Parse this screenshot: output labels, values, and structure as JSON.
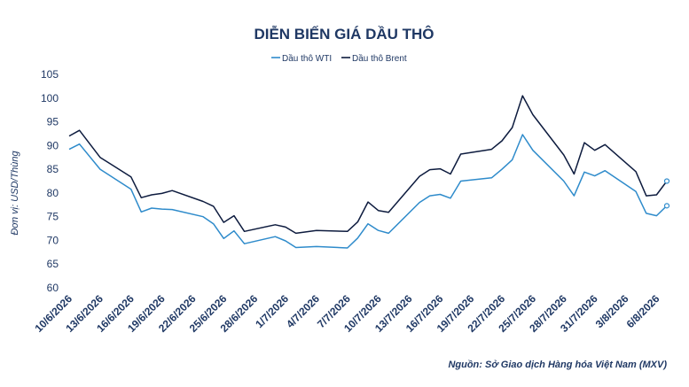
{
  "chart_data": {
    "type": "line",
    "title": "DIỄN BIẾN GIÁ DẦU THÔ",
    "ylabel": "Đơn vị: USD/Thùng",
    "xlabel": "",
    "ylim": [
      60,
      105
    ],
    "yticks": [
      "60",
      "65",
      "70",
      "75",
      "80",
      "85",
      "90",
      "95",
      "100",
      "105"
    ],
    "legend_position": "top-center",
    "grid": false,
    "x_tick_labels": [
      "10/6/2026",
      "13/6/2026",
      "16/6/2026",
      "19/6/2026",
      "22/6/2026",
      "25/6/2026",
      "28/6/2026",
      "1/7/2026",
      "4/7/2026",
      "7/7/2026",
      "10/7/2026",
      "13/7/2026",
      "16/7/2026",
      "19/7/2026",
      "22/7/2026",
      "25/7/2026",
      "28/7/2026",
      "31/7/2026",
      "3/8/2026",
      "6/8/2026"
    ],
    "series": [
      {
        "name": "Dầu thô WTI",
        "color": "#2e8bcb",
        "points": [
          [
            "10/6/2026",
            89.2
          ],
          [
            "11/6/2026",
            90.3
          ],
          [
            "13/6/2026",
            85.0
          ],
          [
            "16/6/2026",
            80.8
          ],
          [
            "17/6/2026",
            76.0
          ],
          [
            "18/6/2026",
            76.8
          ],
          [
            "19/6/2026",
            76.6
          ],
          [
            "20/6/2026",
            76.5
          ],
          [
            "23/6/2026",
            75.0
          ],
          [
            "24/6/2026",
            73.5
          ],
          [
            "25/6/2026",
            70.4
          ],
          [
            "26/6/2026",
            72.0
          ],
          [
            "27/6/2026",
            69.3
          ],
          [
            "30/6/2026",
            70.8
          ],
          [
            "1/7/2026",
            69.9
          ],
          [
            "2/7/2026",
            68.5
          ],
          [
            "4/7/2026",
            68.7
          ],
          [
            "7/7/2026",
            68.4
          ],
          [
            "8/7/2026",
            70.5
          ],
          [
            "9/7/2026",
            73.5
          ],
          [
            "10/7/2026",
            72.1
          ],
          [
            "11/7/2026",
            71.5
          ],
          [
            "14/7/2026",
            78.0
          ],
          [
            "15/7/2026",
            79.4
          ],
          [
            "16/7/2026",
            79.7
          ],
          [
            "17/7/2026",
            78.9
          ],
          [
            "18/7/2026",
            82.5
          ],
          [
            "21/7/2026",
            83.2
          ],
          [
            "22/7/2026",
            85.0
          ],
          [
            "23/7/2026",
            87.0
          ],
          [
            "24/7/2026",
            92.3
          ],
          [
            "25/7/2026",
            89.0
          ],
          [
            "28/7/2026",
            82.5
          ],
          [
            "29/7/2026",
            79.4
          ],
          [
            "30/7/2026",
            84.4
          ],
          [
            "31/7/2026",
            83.6
          ],
          [
            "1/8/2026",
            84.7
          ],
          [
            "4/8/2026",
            80.3
          ],
          [
            "5/8/2026",
            75.7
          ],
          [
            "6/8/2026",
            75.2
          ],
          [
            "7/8/2026",
            77.3
          ]
        ]
      },
      {
        "name": "Dầu thô Brent",
        "color": "#0d1b3e",
        "points": [
          [
            "10/6/2026",
            92.0
          ],
          [
            "11/6/2026",
            93.2
          ],
          [
            "13/6/2026",
            87.5
          ],
          [
            "16/6/2026",
            83.4
          ],
          [
            "17/6/2026",
            79.0
          ],
          [
            "18/6/2026",
            79.6
          ],
          [
            "19/6/2026",
            79.9
          ],
          [
            "20/6/2026",
            80.5
          ],
          [
            "23/6/2026",
            78.2
          ],
          [
            "24/6/2026",
            77.2
          ],
          [
            "25/6/2026",
            73.8
          ],
          [
            "26/6/2026",
            75.2
          ],
          [
            "27/6/2026",
            71.9
          ],
          [
            "30/6/2026",
            73.3
          ],
          [
            "1/7/2026",
            72.8
          ],
          [
            "2/7/2026",
            71.5
          ],
          [
            "4/7/2026",
            72.1
          ],
          [
            "7/7/2026",
            71.9
          ],
          [
            "8/7/2026",
            73.9
          ],
          [
            "9/7/2026",
            78.1
          ],
          [
            "10/7/2026",
            76.3
          ],
          [
            "11/7/2026",
            75.9
          ],
          [
            "14/7/2026",
            83.5
          ],
          [
            "15/7/2026",
            84.9
          ],
          [
            "16/7/2026",
            85.1
          ],
          [
            "17/7/2026",
            84.0
          ],
          [
            "18/7/2026",
            88.2
          ],
          [
            "21/7/2026",
            89.2
          ],
          [
            "22/7/2026",
            91.0
          ],
          [
            "23/7/2026",
            93.8
          ],
          [
            "24/7/2026",
            100.5
          ],
          [
            "25/7/2026",
            96.5
          ],
          [
            "28/7/2026",
            88.0
          ],
          [
            "29/7/2026",
            84.0
          ],
          [
            "30/7/2026",
            90.6
          ],
          [
            "31/7/2026",
            89.0
          ],
          [
            "1/8/2026",
            90.2
          ],
          [
            "4/8/2026",
            84.5
          ],
          [
            "5/8/2026",
            79.4
          ],
          [
            "6/8/2026",
            79.6
          ],
          [
            "7/8/2026",
            82.5
          ]
        ]
      }
    ],
    "source": "Nguồn: Sở Giao dịch Hàng hóa Việt Nam (MXV)"
  }
}
